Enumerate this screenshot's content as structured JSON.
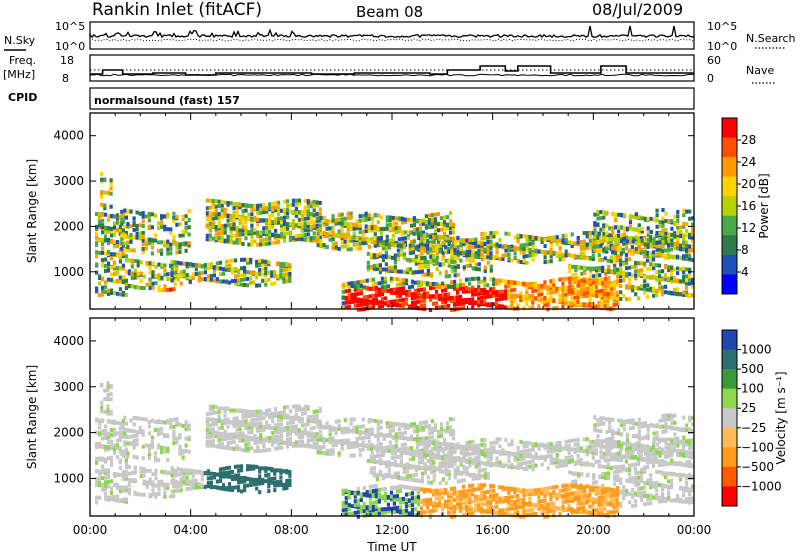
{
  "header": {
    "station": "Rankin Inlet (fitACF)",
    "beam": "Beam 08",
    "date": "08/Jul/2009"
  },
  "summary_panels": {
    "nsky_label": "N.Sky",
    "nsky_ticks": [
      "10^5",
      "10^0"
    ],
    "nsearch_label": "N.Search",
    "nsearch_ticks": [
      "10^5",
      "10^0"
    ],
    "freq_label_1": "Freq.",
    "freq_label_2": "[MHz]",
    "freq_ticks": [
      "18",
      "8"
    ],
    "nave_label": "Nave",
    "nave_ticks": [
      "60",
      "0"
    ],
    "cpid_label": "CPID",
    "cpid_value": "normalsound (fast) 157"
  },
  "colors": {
    "power_scale": [
      "#0000ff",
      "#1f4fb8",
      "#2d7a4a",
      "#4aa84a",
      "#b5d300",
      "#ffd200",
      "#ff9a00",
      "#ff5000",
      "#ff0000"
    ],
    "velocity_scale": [
      "#ff0000",
      "#ff5a00",
      "#ff9a1a",
      "#ffbb55",
      "#c8c8c8",
      "#8bd94a",
      "#3a9a3a",
      "#2d6e6e",
      "#2244b0"
    ]
  },
  "chart_data": [
    {
      "type": "heatmap",
      "name": "Power",
      "xlabel": "",
      "ylabel": "Slant Range [km]",
      "x_ticks": [
        "00:00",
        "04:00",
        "08:00",
        "12:00",
        "16:00",
        "20:00",
        "00:00"
      ],
      "xlim_hours": [
        0,
        24
      ],
      "y_ticks": [
        1000,
        2000,
        3000,
        4000
      ],
      "ylim": [
        180,
        4500
      ],
      "colorbar_label": "Power [dB]",
      "colorbar_ticks": [
        4,
        8,
        12,
        16,
        20,
        24,
        28
      ],
      "colorbar_range": [
        0,
        30
      ]
    },
    {
      "type": "heatmap",
      "name": "Velocity",
      "xlabel": "Time UT",
      "ylabel": "Slant Range [km]",
      "x_ticks": [
        "00:00",
        "04:00",
        "08:00",
        "12:00",
        "16:00",
        "20:00",
        "00:00"
      ],
      "xlim_hours": [
        0,
        24
      ],
      "y_ticks": [
        1000,
        2000,
        3000,
        4000
      ],
      "ylim": [
        180,
        4500
      ],
      "colorbar_label": "Velocity [m s⁻¹]",
      "colorbar_ticks": [
        "1000",
        "500",
        "100",
        "25",
        "−25",
        "−100",
        "−500",
        "−1000"
      ]
    }
  ]
}
